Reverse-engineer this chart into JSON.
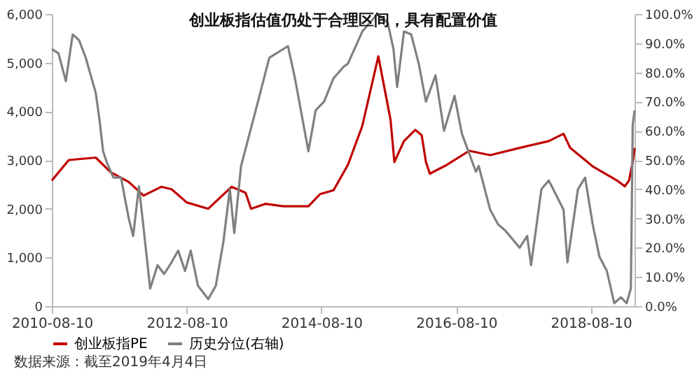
{
  "chart_data": {
    "type": "line",
    "title": "创业板指估值仍处于合理区间，具有配置价值",
    "annotations": [
      "数据来源：截至2019年4月4日"
    ],
    "xlim": [
      "2010-08-10",
      "2019-04-04"
    ],
    "xticks": [
      "2010-08-10",
      "2012-08-10",
      "2014-08-10",
      "2016-08-10",
      "2018-08-10"
    ],
    "ylim": [
      0,
      6000
    ],
    "yticks": [
      {
        "value": 0,
        "label": "0"
      },
      {
        "value": 1000,
        "label": "1,000"
      },
      {
        "value": 2000,
        "label": "2,000"
      },
      {
        "value": 3000,
        "label": "3,000"
      },
      {
        "value": 4000,
        "label": "4,000"
      },
      {
        "value": 5000,
        "label": "5,000"
      },
      {
        "value": 6000,
        "label": "6,000"
      }
    ],
    "y2lim": [
      0,
      100
    ],
    "y2ticks": [
      {
        "value": 0,
        "label": "0.0%"
      },
      {
        "value": 10,
        "label": "10.0%"
      },
      {
        "value": 20,
        "label": "20.0%"
      },
      {
        "value": 30,
        "label": "30.0%"
      },
      {
        "value": 40,
        "label": "40.0%"
      },
      {
        "value": 50,
        "label": "50.0%"
      },
      {
        "value": 60,
        "label": "60.0%"
      },
      {
        "value": 70,
        "label": "70.0%"
      },
      {
        "value": 80,
        "label": "80.0%"
      },
      {
        "value": 90,
        "label": "90.0%"
      },
      {
        "value": 100,
        "label": "100.0%"
      }
    ],
    "grid": false,
    "legend": "bottom",
    "line_style": "solid",
    "marker": "none",
    "series": [
      {
        "name": "创业板指PE",
        "color": "#c00000",
        "x": [
          "2010-08-10",
          "2010-11-10",
          "2011-04-05",
          "2011-06-25",
          "2011-10-01",
          "2011-12-20",
          "2012-03-25",
          "2012-05-20",
          "2012-08-10",
          "2012-12-05",
          "2013-04-10",
          "2013-06-25",
          "2013-07-25",
          "2013-10-10",
          "2014-01-15",
          "2014-06-01",
          "2014-08-03",
          "2014-10-15",
          "2015-01-01",
          "2015-03-20",
          "2015-06-15",
          "2015-08-20",
          "2015-09-10",
          "2015-11-01",
          "2016-01-01",
          "2016-02-05",
          "2016-02-28",
          "2016-03-20",
          "2016-06-20",
          "2016-10-20",
          "2017-02-10",
          "2017-07-20",
          "2017-12-25",
          "2018-03-15",
          "2018-04-20",
          "2018-08-20",
          "2018-12-30",
          "2019-02-10",
          "2019-03-05",
          "2019-03-25",
          "2019-04-04"
        ],
        "values": [
          2580,
          3000,
          3050,
          2750,
          2550,
          2270,
          2450,
          2400,
          2130,
          2000,
          2450,
          2330,
          2000,
          2100,
          2050,
          2050,
          2300,
          2380,
          2900,
          3700,
          5130,
          3830,
          2960,
          3390,
          3620,
          3510,
          2960,
          2720,
          2900,
          3190,
          3100,
          3250,
          3390,
          3540,
          3250,
          2870,
          2580,
          2460,
          2580,
          2960,
          3250
        ]
      },
      {
        "name": "历史分位(右轴)",
        "color": "#808080",
        "axis": "y2",
        "x": [
          "2010-08-10",
          "2010-09-15",
          "2010-10-25",
          "2010-12-01",
          "2011-01-05",
          "2011-02-10",
          "2011-04-05",
          "2011-04-25",
          "2011-05-15",
          "2011-06-05",
          "2011-07-10",
          "2011-08-20",
          "2011-10-01",
          "2011-10-25",
          "2011-11-25",
          "2011-12-20",
          "2012-01-25",
          "2012-03-05",
          "2012-04-10",
          "2012-05-20",
          "2012-06-25",
          "2012-08-01",
          "2012-09-01",
          "2012-10-10",
          "2012-12-05",
          "2013-01-15",
          "2013-02-25",
          "2013-04-01",
          "2013-04-25",
          "2013-06-01",
          "2013-08-15",
          "2013-11-01",
          "2014-02-10",
          "2014-03-20",
          "2014-06-01",
          "2014-07-10",
          "2014-08-25",
          "2014-10-15",
          "2014-12-10",
          "2015-01-01",
          "2015-03-20",
          "2015-06-10",
          "2015-08-05",
          "2015-09-05",
          "2015-09-25",
          "2015-11-01",
          "2015-12-10",
          "2016-01-20",
          "2016-02-28",
          "2016-04-20",
          "2016-06-05",
          "2016-08-01",
          "2016-09-10",
          "2016-11-25",
          "2016-12-10",
          "2017-02-10",
          "2017-03-25",
          "2017-05-01",
          "2017-07-20",
          "2017-08-30",
          "2017-09-20",
          "2017-11-15",
          "2017-12-25",
          "2018-03-15",
          "2018-04-05",
          "2018-06-01",
          "2018-07-10",
          "2018-08-20",
          "2018-09-25",
          "2018-11-05",
          "2018-12-15",
          "2019-01-20",
          "2019-02-20",
          "2019-03-15",
          "2019-03-25",
          "2019-04-04"
        ],
        "values": [
          88,
          86.5,
          77,
          93,
          91,
          85,
          73,
          64,
          53,
          49,
          44,
          44,
          30,
          24,
          41,
          27,
          6,
          14,
          11,
          15,
          19,
          12,
          19,
          7,
          2.4,
          7,
          22,
          40,
          25,
          48,
          66,
          85,
          89,
          78,
          53,
          67,
          70,
          78,
          82,
          83,
          94,
          100,
          97,
          88,
          75,
          94,
          93,
          83,
          70,
          79,
          60,
          72,
          59,
          46,
          48,
          33,
          28,
          26,
          20,
          24,
          14,
          40,
          43,
          33,
          15,
          40,
          44,
          28,
          17,
          12,
          1,
          3,
          1,
          6,
          62,
          67
        ]
      }
    ]
  }
}
